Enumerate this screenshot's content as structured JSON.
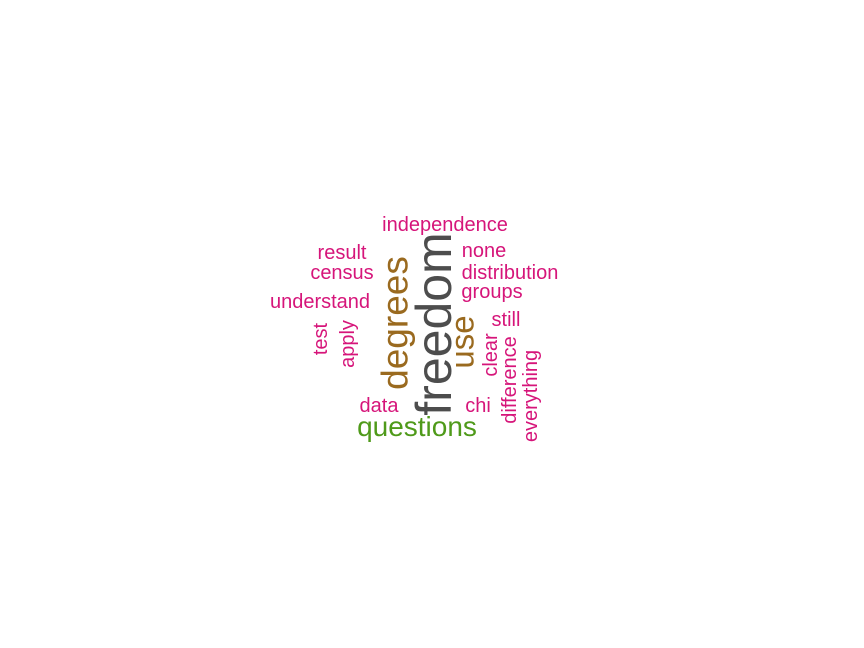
{
  "colors": {
    "primary": "#4d4d4d",
    "secondary": "#9a6a1f",
    "tertiary": "#4f9a1a",
    "small": "#d6157a"
  },
  "cloud": {
    "freedom": "freedom",
    "degrees": "degrees",
    "use": "use",
    "questions": "questions",
    "independence": "independence",
    "result": "result",
    "census": "census",
    "understand": "understand",
    "test": "test",
    "apply": "apply",
    "data": "data",
    "none": "none",
    "distribution": "distribution",
    "groups": "groups",
    "still": "still",
    "clear": "clear",
    "chi": "chi",
    "difference": "difference",
    "everything": "everything"
  }
}
